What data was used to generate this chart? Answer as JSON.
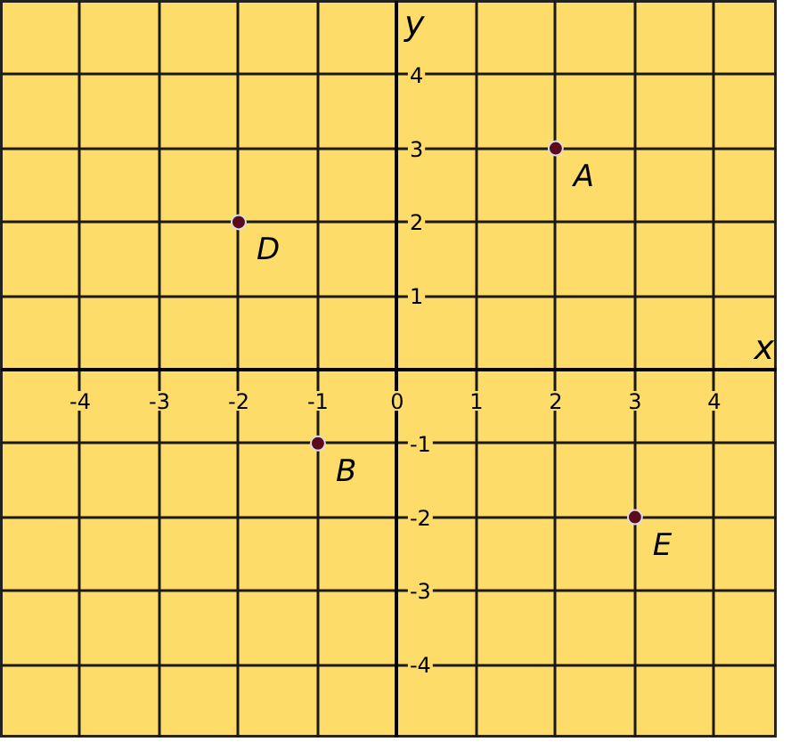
{
  "chart_data": {
    "type": "scatter",
    "xlabel": "x",
    "ylabel": "y",
    "x": [
      2,
      -1,
      -2,
      3
    ],
    "series": [
      {
        "color": "#5c0a1e",
        "values": [
          3,
          -1,
          2,
          -2
        ]
      }
    ],
    "annotations": [
      {
        "text": "A",
        "x": 2,
        "y": 3
      },
      {
        "text": "B",
        "x": -1,
        "y": -1
      },
      {
        "text": "D",
        "x": -2,
        "y": 2
      },
      {
        "text": "E",
        "x": 3,
        "y": -2
      }
    ],
    "xlim": [
      -5,
      4.8
    ],
    "ylim": [
      -5,
      5
    ],
    "xticks": [
      -4,
      -3,
      -2,
      -1,
      0,
      1,
      2,
      3,
      4
    ],
    "yticks": [
      -4,
      -3,
      -2,
      -1,
      1,
      2,
      3,
      4
    ],
    "grid": true,
    "marker": "circle"
  }
}
